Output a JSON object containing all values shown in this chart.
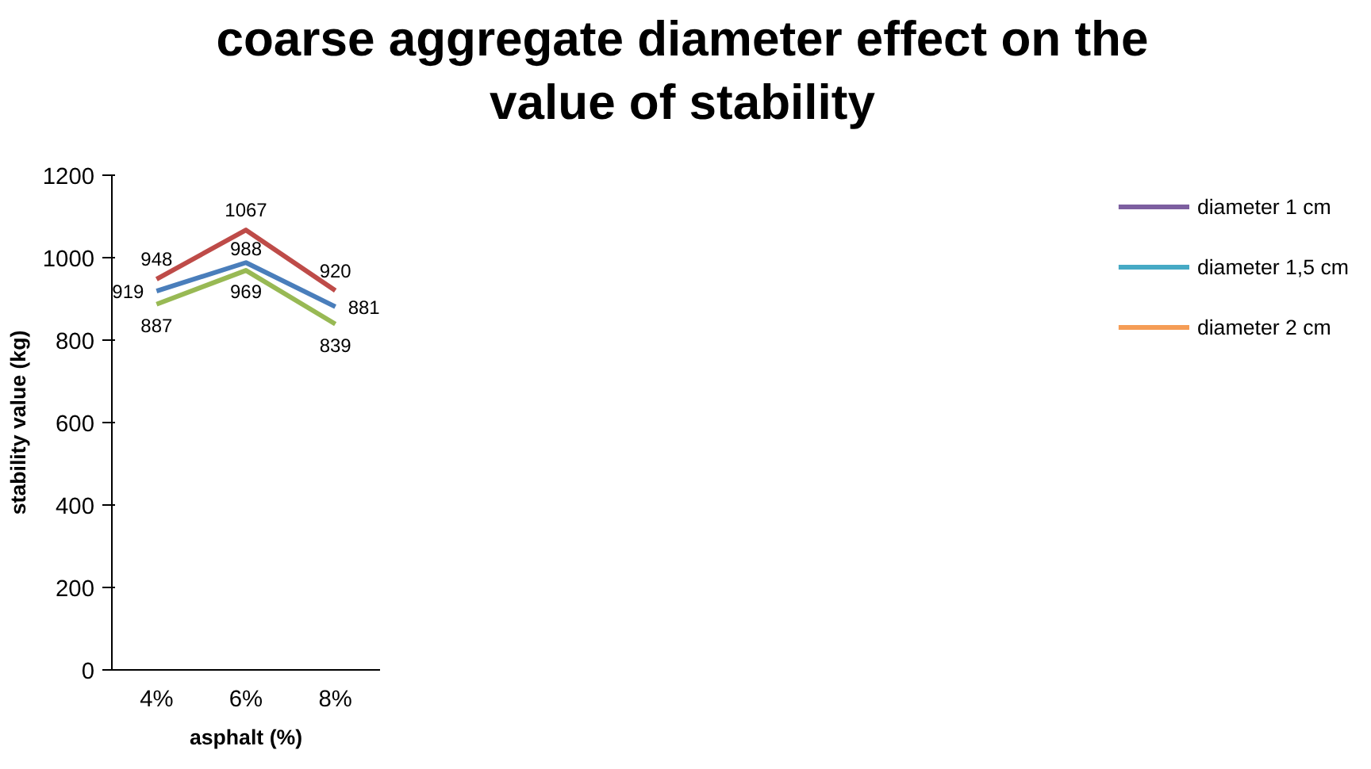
{
  "chart_data": {
    "type": "line",
    "title": "coarse aggregate diameter effect on the value of stability",
    "xlabel": "asphalt (%)",
    "ylabel": "stability value (kg)",
    "categories": [
      "4%",
      "6%",
      "8%"
    ],
    "series": [
      {
        "color": "#be4b48",
        "values": [
          948,
          1067,
          920
        ]
      },
      {
        "color": "#4a7ebb",
        "values": [
          919,
          988,
          881
        ]
      },
      {
        "color": "#98b954",
        "values": [
          887,
          969,
          839
        ]
      },
      {
        "name": "diameter 1 cm",
        "color": "#7d5fa0",
        "values": [
          null,
          null,
          null
        ]
      },
      {
        "name": "diameter 1,5 cm",
        "color": "#46aac5",
        "values": [
          null,
          null,
          null
        ]
      },
      {
        "name": "diameter 2 cm",
        "color": "#f59d56",
        "values": [
          null,
          null,
          null
        ]
      }
    ],
    "ylim": [
      0,
      1200
    ],
    "yticks": [
      0,
      200,
      400,
      600,
      800,
      1000,
      1200
    ],
    "data_labels": true,
    "grid": false,
    "legend": "right"
  }
}
